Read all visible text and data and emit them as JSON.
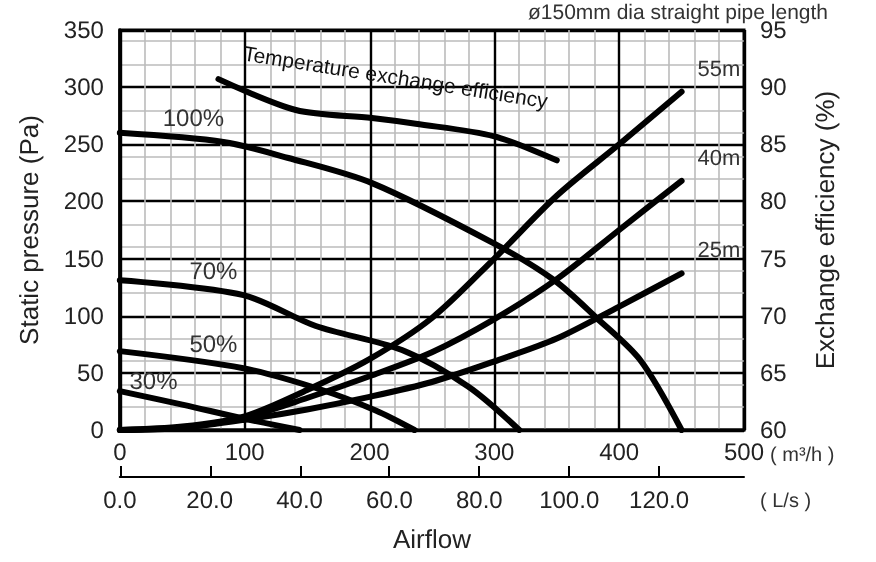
{
  "chart_data": {
    "type": "line",
    "xlabel": "Airflow",
    "ylabel": "Static pressure (Pa)",
    "y2label": "Exchange efficiency (%)",
    "x2label": "( L/s )",
    "annotations": [
      "ø150mm dia straight pipe length",
      "( m³/h )"
    ],
    "xlim": [
      0,
      500
    ],
    "xticks": [
      0,
      100,
      200,
      300,
      400,
      500
    ],
    "x2lim": [
      0,
      138.9
    ],
    "x2ticks": [
      {
        "value": 0,
        "label": "0.0"
      },
      {
        "value": 20,
        "label": "20.0"
      },
      {
        "value": 40,
        "label": "40.0"
      },
      {
        "value": 60,
        "label": "60.0"
      },
      {
        "value": 80,
        "label": "80.0"
      },
      {
        "value": 100,
        "label": "100.0"
      },
      {
        "value": 120,
        "label": "120.0"
      }
    ],
    "ylim": [
      0,
      350
    ],
    "yticks": [
      0,
      50,
      100,
      150,
      200,
      250,
      300,
      350
    ],
    "y2lim": [
      60,
      95
    ],
    "y2ticks": [
      60,
      65,
      70,
      75,
      80,
      85,
      90,
      95
    ],
    "grid": true,
    "legend": false,
    "series": [
      {
        "name": "100%",
        "color": "#000000",
        "x": [
          0,
          83,
          135,
          202,
          300,
          348,
          382,
          417,
          450
        ],
        "values": [
          260,
          252,
          238,
          216,
          163,
          131,
          98,
          61,
          0
        ]
      },
      {
        "name": "70%",
        "color": "#000000",
        "x": [
          0,
          99,
          157,
          226,
          279,
          320
        ],
        "values": [
          131,
          118,
          91,
          70,
          38,
          0
        ]
      },
      {
        "name": "50%",
        "color": "#000000",
        "x": [
          0,
          99,
          162,
          205,
          236
        ],
        "values": [
          69,
          54,
          35,
          17,
          0
        ]
      },
      {
        "name": "30%",
        "color": "#000000",
        "x": [
          0,
          51,
          99,
          144
        ],
        "values": [
          34,
          22,
          10,
          0
        ]
      },
      {
        "name": "55m",
        "color": "#000000",
        "x": [
          0,
          50,
          100,
          150,
          200,
          250,
          300,
          350,
          400,
          450
        ],
        "values": [
          0,
          3,
          12,
          35,
          62,
          98,
          150,
          205,
          250,
          296
        ]
      },
      {
        "name": "40m",
        "color": "#000000",
        "x": [
          0,
          50,
          100,
          150,
          200,
          250,
          300,
          350,
          400,
          450
        ],
        "values": [
          0,
          2,
          11,
          28,
          47,
          68,
          97,
          132,
          175,
          218
        ]
      },
      {
        "name": "25m",
        "color": "#000000",
        "x": [
          0,
          50,
          100,
          150,
          200,
          250,
          300,
          350,
          400,
          450
        ],
        "values": [
          0,
          2,
          9,
          18,
          29,
          42,
          60,
          80,
          108,
          137
        ]
      },
      {
        "name": "Temperature exchange efficiency",
        "color": "#000000",
        "axis": "y2",
        "x": [
          79,
          141,
          202,
          237,
          300,
          350
        ],
        "values": [
          90.7,
          88.0,
          87.3,
          86.8,
          85.7,
          83.6
        ]
      }
    ]
  }
}
